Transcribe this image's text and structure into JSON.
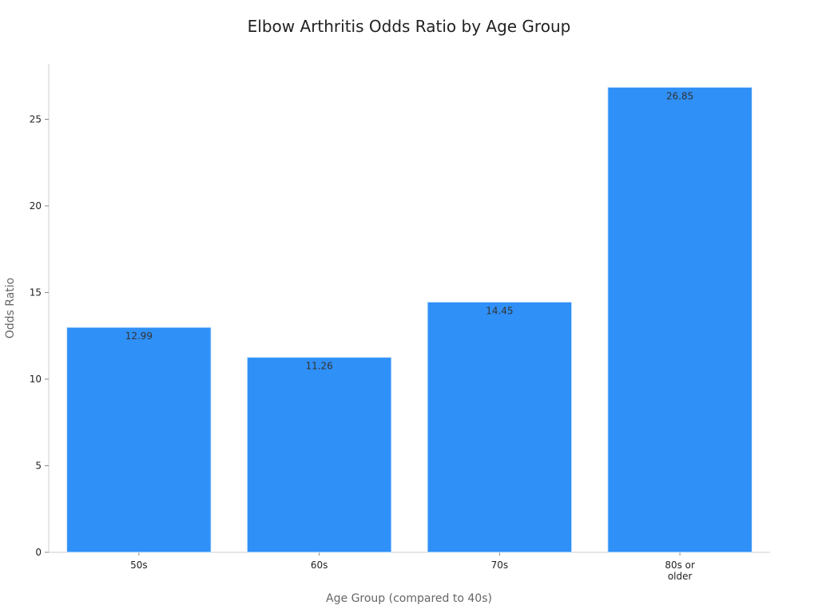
{
  "chart_data": {
    "type": "bar",
    "title": "Elbow Arthritis Odds Ratio by Age Group",
    "xlabel": "Age Group (compared to 40s)",
    "ylabel": "Odds Ratio",
    "categories": [
      "50s",
      "60s",
      "70s",
      "80s or older"
    ],
    "values": [
      12.99,
      11.26,
      14.45,
      26.85
    ],
    "data_labels": [
      "12.99",
      "11.26",
      "14.45",
      "26.85"
    ],
    "ylim": [
      0,
      28.2
    ],
    "yticks": [
      0,
      5,
      10,
      15,
      20,
      25
    ],
    "grid": false,
    "legend": "none",
    "bar_color": "#2f90f7",
    "bar_edge_color": "#d9ecff"
  }
}
